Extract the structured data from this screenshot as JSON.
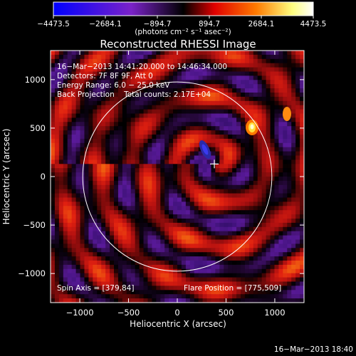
{
  "colorbar": {
    "tick_values": [
      -4473.5,
      -2684.1,
      -894.7,
      894.7,
      2684.1,
      4473.5
    ],
    "tick_labels": [
      "−4473.5",
      "−2684.1",
      "−894.7",
      "894.7",
      "2684.1",
      "4473.5"
    ],
    "units": "(photons cm⁻² s⁻¹ asec⁻²)",
    "range": [
      -4473.5,
      4473.5
    ],
    "colors": [
      "#0000ff",
      "#7a22c8",
      "#000000",
      "#e00000",
      "#ff7a00",
      "#ffff80",
      "#ffffff"
    ]
  },
  "chart_data": {
    "type": "heatmap",
    "title": "Reconstructed RHESSI Image",
    "xlabel": "Heliocentric X (arcsec)",
    "ylabel": "Heliocentric Y (arcsec)",
    "xlim": [
      -1300,
      1300
    ],
    "ylim": [
      -1300,
      1300
    ],
    "xticks": [
      -1000,
      -500,
      0,
      500,
      1000
    ],
    "yticks": [
      -1000,
      -500,
      0,
      500,
      1000
    ],
    "xtick_labels": [
      "−1000",
      "−500",
      "0",
      "500",
      "1000"
    ],
    "ytick_labels": [
      "−1000",
      "−500",
      "0",
      "500",
      "1000"
    ],
    "info_lines": [
      "16−Mar−2013 14:41:20.000 to 14:46:34.000",
      "Detectors: 7F 8F 9F, Att 0",
      "Energy Range: 6.0 − 25.0 keV",
      "Back Projection    Total counts: 2.17E+04"
    ],
    "spin_axis_label": "Spin Axis = [379,84]",
    "flare_position_label": "Flare Position = [775,509]",
    "spin_axis": [
      379,
      84
    ],
    "flare_position": [
      775,
      509
    ],
    "solar_limb": {
      "center": [
        0,
        0
      ],
      "radius": 970
    }
  },
  "footer": {
    "timestamp": "16−Mar−2013 18:40"
  }
}
